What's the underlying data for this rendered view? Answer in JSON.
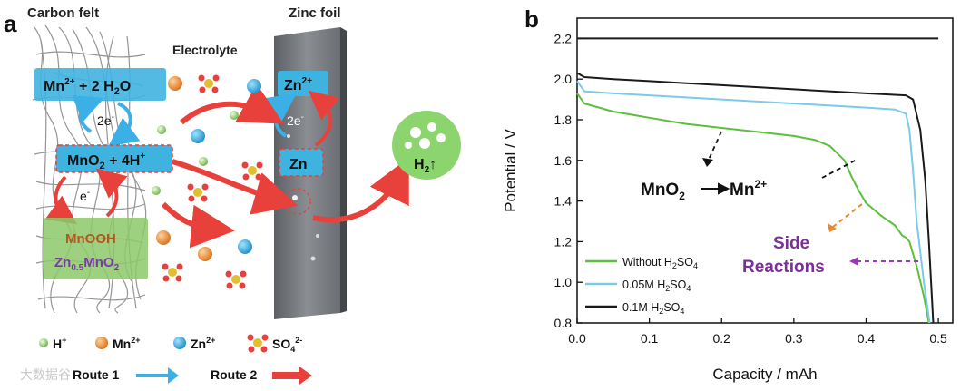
{
  "panel_a": {
    "label": "a",
    "carbon_felt": "Carbon felt",
    "zinc_foil": "Zinc foil",
    "electrolyte": "Electrolyte",
    "box_mn_left": "Mn",
    "box_mn_sup": "2+",
    "box_mn_right": " + 2 H",
    "box_mn_sub": "2",
    "box_mn_end": "O",
    "left_2e": "2e",
    "left_2e_sup": "-",
    "box_mno2": "MnO",
    "box_mno2_sub": "2",
    "box_mno2_rest": " + 4H",
    "box_mno2_sup": "+",
    "left_e": "e",
    "left_e_sup": "-",
    "mnooh": "MnOOH",
    "zn_mno2_a": "Zn",
    "zn_mno2_sub": "0.5",
    "zn_mno2_b": "MnO",
    "zn_mno2_sub2": "2",
    "box_zn2": "Zn",
    "box_zn2_sup": "2+",
    "right_2e": "2e",
    "right_2e_sup": "-",
    "box_zn": "Zn",
    "h2": "H",
    "h2_sub": "2",
    "h2_arrow": "↑",
    "legend_h": "H",
    "legend_h_sup": "+",
    "legend_mn": "Mn",
    "legend_mn_sup": "2+",
    "legend_zn": "Zn",
    "legend_zn_sup": "2+",
    "legend_so4": "SO",
    "legend_so4_sub": "4",
    "legend_so4_sup": "2-",
    "route1": "Route 1",
    "route2": "Route 2",
    "watermark": "大数据谷",
    "colors": {
      "blue_box": "#3fb3e0",
      "green_box": "#8cc96a",
      "red_arrow": "#e8403a",
      "blue_arrow": "#3ab0e6",
      "zinc": "#707478"
    }
  },
  "panel_b": {
    "label": "b",
    "annotation_mno2": "MnO",
    "annotation_mno2_sub": "2",
    "annotation_mn": "Mn",
    "annotation_mn_sup": "2+",
    "side_1": "Side",
    "side_2": "Reactions",
    "legend_1a": "Without H",
    "legend_1sub": "2",
    "legend_1b": "SO",
    "legend_1sub2": "4",
    "legend_2a": "0.05M H",
    "legend_2sub": "2",
    "legend_2b": "SO",
    "legend_2sub2": "4",
    "legend_3a": "0.1M H",
    "legend_3sub": "2",
    "legend_3b": "SO",
    "legend_3sub2": "4"
  },
  "chart_data": {
    "type": "line",
    "xlabel": "Capacity / mAh",
    "ylabel": "Potential / V",
    "xlim": [
      0,
      0.52
    ],
    "ylim": [
      0.8,
      2.3
    ],
    "x_ticks": [
      "0.0",
      "0.1",
      "0.2",
      "0.3",
      "0.4",
      "0.5"
    ],
    "y_ticks": [
      "0.8",
      "1.0",
      "1.2",
      "1.4",
      "1.6",
      "1.8",
      "2.0",
      "2.2"
    ],
    "legend_position": "bottom-left",
    "grid": false,
    "series": [
      {
        "name": "Without H2SO4",
        "color": "#5cbf3c",
        "points": [
          [
            0,
            1.93
          ],
          [
            0.01,
            1.88
          ],
          [
            0.05,
            1.84
          ],
          [
            0.1,
            1.81
          ],
          [
            0.15,
            1.78
          ],
          [
            0.2,
            1.76
          ],
          [
            0.25,
            1.74
          ],
          [
            0.3,
            1.72
          ],
          [
            0.33,
            1.7
          ],
          [
            0.35,
            1.67
          ],
          [
            0.37,
            1.6
          ],
          [
            0.38,
            1.52
          ],
          [
            0.39,
            1.45
          ],
          [
            0.4,
            1.39
          ],
          [
            0.42,
            1.33
          ],
          [
            0.44,
            1.28
          ],
          [
            0.45,
            1.23
          ],
          [
            0.455,
            1.22
          ],
          [
            0.46,
            1.2
          ],
          [
            0.47,
            1.08
          ],
          [
            0.48,
            0.93
          ],
          [
            0.487,
            0.8
          ]
        ]
      },
      {
        "name": "0.05M H2SO4",
        "color": "#7ccaea",
        "points": [
          [
            0,
            1.99
          ],
          [
            0.01,
            1.94
          ],
          [
            0.05,
            1.93
          ],
          [
            0.1,
            1.92
          ],
          [
            0.2,
            1.9
          ],
          [
            0.3,
            1.88
          ],
          [
            0.4,
            1.86
          ],
          [
            0.44,
            1.85
          ],
          [
            0.455,
            1.83
          ],
          [
            0.46,
            1.75
          ],
          [
            0.465,
            1.55
          ],
          [
            0.47,
            1.3
          ],
          [
            0.475,
            1.15
          ],
          [
            0.48,
            1.0
          ],
          [
            0.488,
            0.8
          ]
        ]
      },
      {
        "name": "0.1M H2SO4",
        "color": "#1a1a1a",
        "points": [
          [
            0,
            2.03
          ],
          [
            0.01,
            2.01
          ],
          [
            0.05,
            2.0
          ],
          [
            0.1,
            1.99
          ],
          [
            0.2,
            1.97
          ],
          [
            0.3,
            1.95
          ],
          [
            0.4,
            1.93
          ],
          [
            0.455,
            1.92
          ],
          [
            0.465,
            1.9
          ],
          [
            0.475,
            1.75
          ],
          [
            0.482,
            1.5
          ],
          [
            0.487,
            1.2
          ],
          [
            0.49,
            1.0
          ],
          [
            0.493,
            0.8
          ]
        ]
      },
      {
        "name": "",
        "color": "#1a1a1a",
        "points": [
          [
            0,
            2.2
          ],
          [
            0.5,
            2.2
          ]
        ]
      }
    ]
  }
}
